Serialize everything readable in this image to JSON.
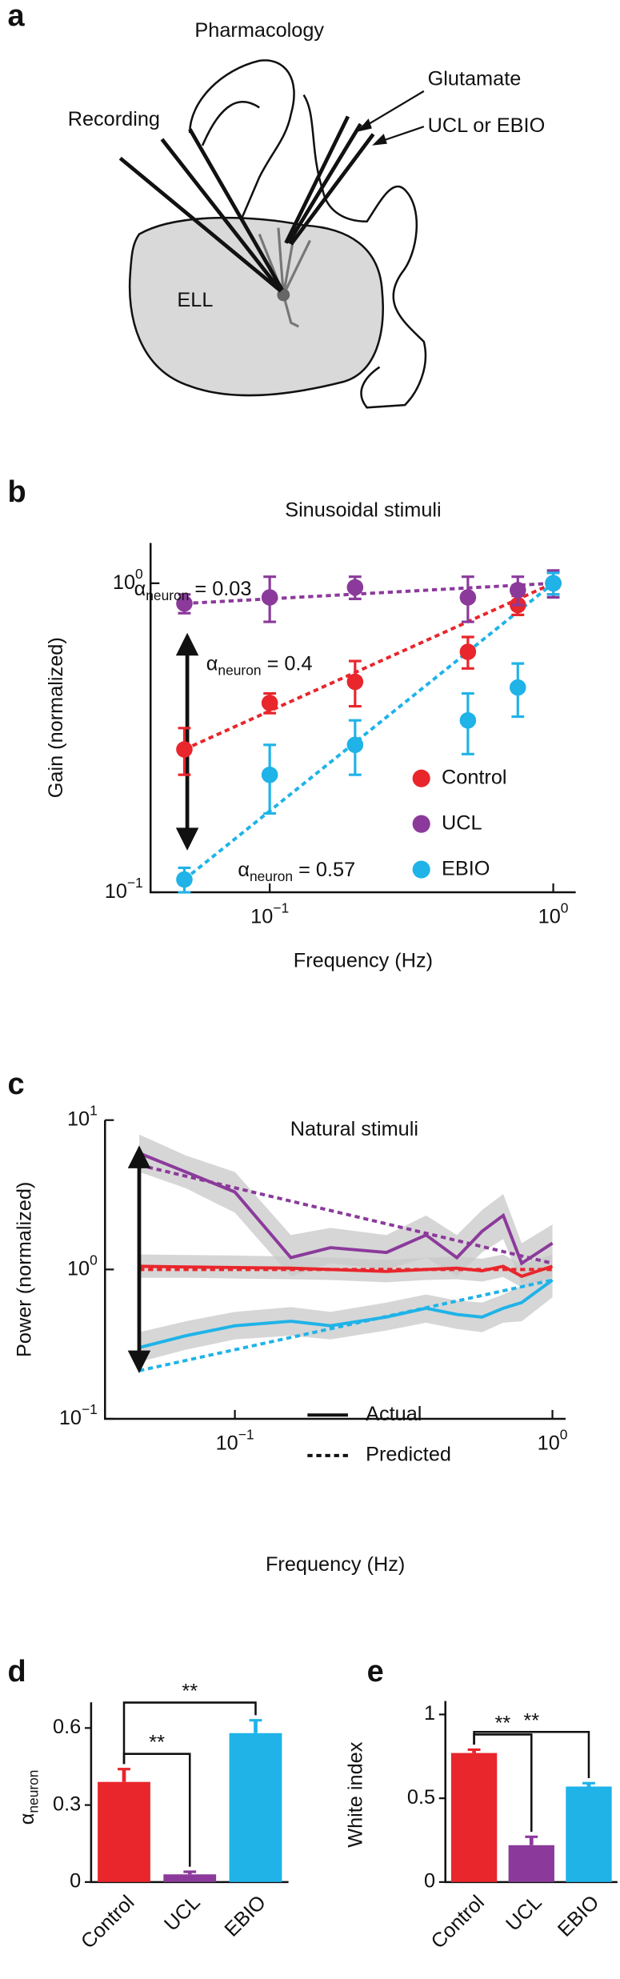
{
  "diagram": {
    "panel_label": "a",
    "labels": {
      "pharmacology": "Pharmacology",
      "recording": "Recording",
      "glutamate": "Glutamate",
      "drug": "UCL or EBIO",
      "region": "ELL"
    }
  },
  "chart_data": [
    {
      "type": "scatter",
      "panel_label": "b",
      "title": "Sinusoidal stimuli",
      "x_label": "Frequency (Hz)",
      "y_label": "Gain (normalized)",
      "log_x": true,
      "log_y": true,
      "xlim": [
        0.038,
        1.2
      ],
      "ylim": [
        0.1,
        1.35
      ],
      "xticks": [
        {
          "value": 0.1,
          "label": "10",
          "exponent": "−1"
        },
        {
          "value": 1,
          "label": "10",
          "exponent": "0"
        }
      ],
      "yticks": [
        {
          "value": 0.1,
          "label": "10",
          "exponent": "−1"
        },
        {
          "value": 1,
          "label": "10",
          "exponent": "0"
        }
      ],
      "x": [
        0.05,
        0.1,
        0.2,
        0.5,
        0.75,
        1
      ],
      "legend": "lower right",
      "series": [
        {
          "name": "Control",
          "color": "#e8262c",
          "values": [
            0.29,
            0.41,
            0.48,
            0.6,
            0.85,
            1.0
          ],
          "errors": [
            0.05,
            0.03,
            0.08,
            0.07,
            0.06,
            0.08
          ],
          "fit": {
            "x": [
              0.05,
              1
            ],
            "values": [
              0.29,
              1.0
            ]
          },
          "annotation": {
            "symbol": "α",
            "subscript": "neuron",
            "text": " = 0.4"
          }
        },
        {
          "name": "UCL",
          "color": "#8b3a9b",
          "values": [
            0.86,
            0.9,
            0.97,
            0.9,
            0.95,
            1.0
          ],
          "errors": [
            0.06,
            0.15,
            0.08,
            0.15,
            0.1,
            0.1
          ],
          "fit": {
            "x": [
              0.05,
              1
            ],
            "values": [
              0.86,
              1.0
            ]
          },
          "annotation": {
            "symbol": "α",
            "subscript": "neuron",
            "text": " = 0.03"
          }
        },
        {
          "name": "EBIO",
          "color": "#1fb3e8",
          "values": [
            0.11,
            0.24,
            0.3,
            0.36,
            0.46,
            1.0
          ],
          "errors": [
            0.01,
            0.06,
            0.06,
            0.08,
            0.09,
            0.08
          ],
          "fit": {
            "x": [
              0.05,
              1
            ],
            "values": [
              0.11,
              1.0
            ]
          },
          "annotation": {
            "symbol": "α",
            "subscript": "neuron",
            "text": " = 0.57"
          }
        }
      ]
    },
    {
      "type": "line",
      "panel_label": "c",
      "title": "Natural stimuli",
      "x_label": "Frequency (Hz)",
      "y_label": "Power (normalized)",
      "log_x": true,
      "log_y": true,
      "xlim": [
        0.039,
        1.1
      ],
      "ylim": [
        0.1,
        10
      ],
      "xticks": [
        {
          "value": 0.1,
          "label": "10",
          "exponent": "−1"
        },
        {
          "value": 1,
          "label": "10",
          "exponent": "0"
        }
      ],
      "yticks": [
        {
          "value": 0.1,
          "label": "10",
          "exponent": "−1"
        },
        {
          "value": 1,
          "label": "10",
          "exponent": "0"
        },
        {
          "value": 10,
          "label": "10",
          "exponent": "1"
        }
      ],
      "x": [
        0.05,
        0.07,
        0.1,
        0.15,
        0.2,
        0.3,
        0.4,
        0.5,
        0.6,
        0.7,
        0.8,
        1.0
      ],
      "band_color": "#c8c8c8",
      "series": [
        {
          "color": "#8b3a9b",
          "values": [
            6,
            4.5,
            3.3,
            1.2,
            1.4,
            1.3,
            1.7,
            1.2,
            1.8,
            2.3,
            1.1,
            1.5
          ],
          "lower": [
            4.5,
            3.5,
            2.4,
            0.9,
            1.1,
            1.0,
            1.2,
            0.9,
            1.3,
            1.6,
            0.8,
            1.1
          ],
          "upper": [
            8,
            5.8,
            4.5,
            1.7,
            1.9,
            1.7,
            2.3,
            1.7,
            2.5,
            3.2,
            1.5,
            2.0
          ],
          "predicted": {
            "x": [
              0.05,
              1
            ],
            "values": [
              5,
              1.1
            ]
          }
        },
        {
          "color": "#e8262c",
          "values": [
            1.05,
            1.04,
            1.03,
            1.02,
            1.0,
            0.97,
            1.0,
            1.02,
            0.98,
            1.05,
            0.9,
            1.05
          ],
          "lower": [
            0.88,
            0.88,
            0.87,
            0.86,
            0.85,
            0.82,
            0.85,
            0.86,
            0.83,
            0.89,
            0.76,
            0.89
          ],
          "upper": [
            1.26,
            1.25,
            1.24,
            1.22,
            1.2,
            1.16,
            1.2,
            1.22,
            1.18,
            1.26,
            1.08,
            1.26
          ],
          "predicted": {
            "x": [
              0.05,
              1
            ],
            "values": [
              1,
              1
            ]
          }
        },
        {
          "color": "#1fb3e8",
          "values": [
            0.3,
            0.36,
            0.42,
            0.45,
            0.42,
            0.48,
            0.55,
            0.5,
            0.48,
            0.55,
            0.6,
            0.85
          ],
          "lower": [
            0.24,
            0.29,
            0.34,
            0.36,
            0.34,
            0.39,
            0.44,
            0.4,
            0.38,
            0.44,
            0.45,
            0.65
          ],
          "upper": [
            0.38,
            0.45,
            0.52,
            0.56,
            0.52,
            0.6,
            0.68,
            0.62,
            0.6,
            0.68,
            0.78,
            1.1
          ],
          "predicted": {
            "x": [
              0.05,
              1
            ],
            "values": [
              0.21,
              0.85
            ]
          }
        }
      ],
      "legend_items": [
        {
          "name": "Actual",
          "dashed": false
        },
        {
          "name": "Predicted",
          "dashed": true
        }
      ]
    },
    {
      "type": "bar",
      "panel_label": "d",
      "y_label": {
        "symbol": "α",
        "subscript": "neuron"
      },
      "categories": [
        "Control",
        "UCL",
        "EBIO"
      ],
      "values": [
        0.39,
        0.03,
        0.58
      ],
      "errors": [
        0.05,
        0.01,
        0.05
      ],
      "colors": [
        "#e8262c",
        "#8b3a9b",
        "#1fb3e8"
      ],
      "ylim": [
        0,
        0.7
      ],
      "yticks": [
        0,
        0.3,
        0.6
      ],
      "significance": [
        {
          "pair": [
            0,
            1
          ],
          "label": "**"
        },
        {
          "pair": [
            0,
            2
          ],
          "label": "**"
        }
      ]
    },
    {
      "type": "bar",
      "panel_label": "e",
      "y_label": "White index",
      "categories": [
        "Control",
        "UCL",
        "EBIO"
      ],
      "values": [
        0.77,
        0.22,
        0.57
      ],
      "errors": [
        0.02,
        0.05,
        0.02
      ],
      "colors": [
        "#e8262c",
        "#8b3a9b",
        "#1fb3e8"
      ],
      "ylim": [
        0,
        1.08
      ],
      "yticks": [
        0,
        0.5,
        1
      ],
      "significance": [
        {
          "pair": [
            0,
            1
          ],
          "label": "**"
        },
        {
          "pair": [
            0,
            2
          ],
          "label": "**"
        }
      ]
    }
  ]
}
